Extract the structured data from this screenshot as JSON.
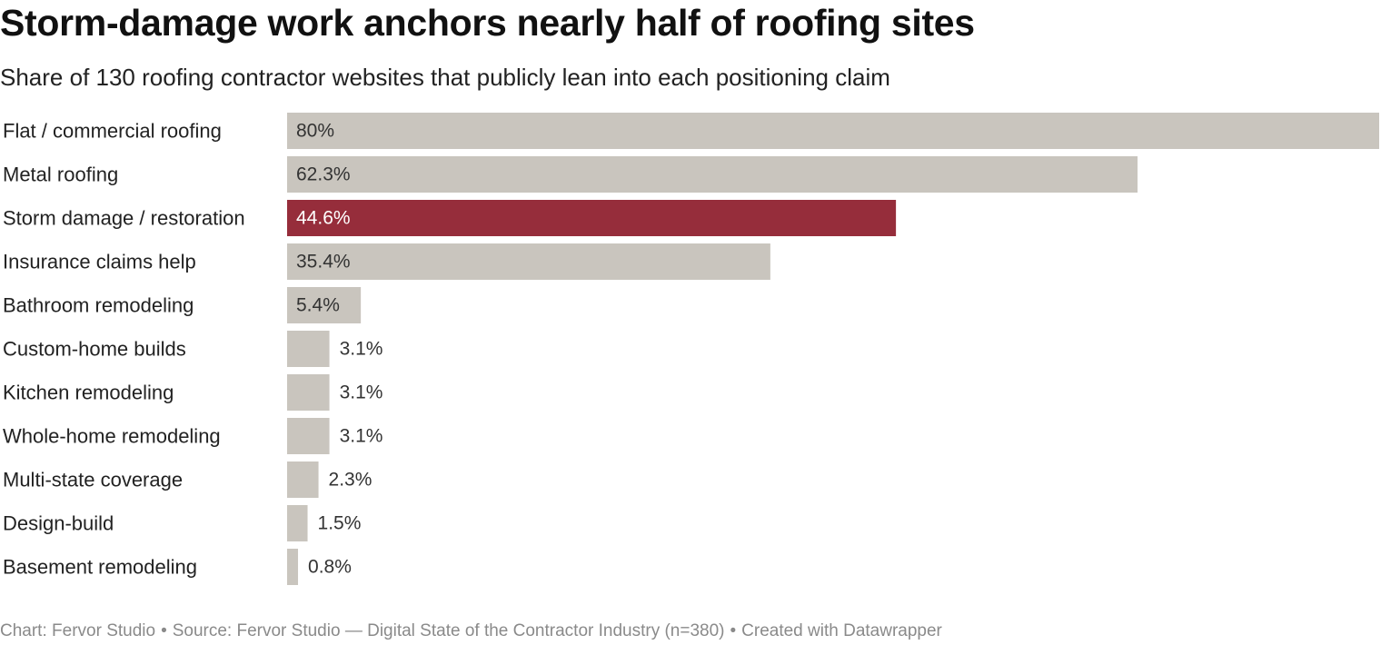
{
  "title": "Storm-damage work anchors nearly half of roofing sites",
  "subtitle": "Share of 130 roofing contractor websites that publicly lean into each positioning claim",
  "footer": {
    "chart_credit": "Chart: Fervor Studio",
    "source": "Source: Fervor Studio — Digital State of the Contractor Industry (n=380)",
    "created_with": "Created with Datawrapper",
    "separator": "•"
  },
  "colors": {
    "bar_default": "#c9c5be",
    "bar_highlight": "#962d3b",
    "label_on_default": "#333333",
    "label_on_highlight": "#ffffff",
    "label_outside": "#333333"
  },
  "chart_data": {
    "type": "bar",
    "orientation": "horizontal",
    "unit": "%",
    "xlim": [
      0,
      80
    ],
    "grid": false,
    "categories": [
      "Flat / commercial roofing",
      "Metal roofing",
      "Storm damage / restoration",
      "Insurance claims help",
      "Bathroom remodeling",
      "Custom-home builds",
      "Kitchen remodeling",
      "Whole-home remodeling",
      "Multi-state coverage",
      "Design-build",
      "Basement remodeling"
    ],
    "values": [
      80,
      62.3,
      44.6,
      35.4,
      5.4,
      3.1,
      3.1,
      3.1,
      2.3,
      1.5,
      0.8
    ],
    "value_labels": [
      "80%",
      "62.3%",
      "44.6%",
      "35.4%",
      "5.4%",
      "3.1%",
      "3.1%",
      "3.1%",
      "2.3%",
      "1.5%",
      "0.8%"
    ],
    "highlight": [
      "Storm damage / restoration"
    ]
  }
}
